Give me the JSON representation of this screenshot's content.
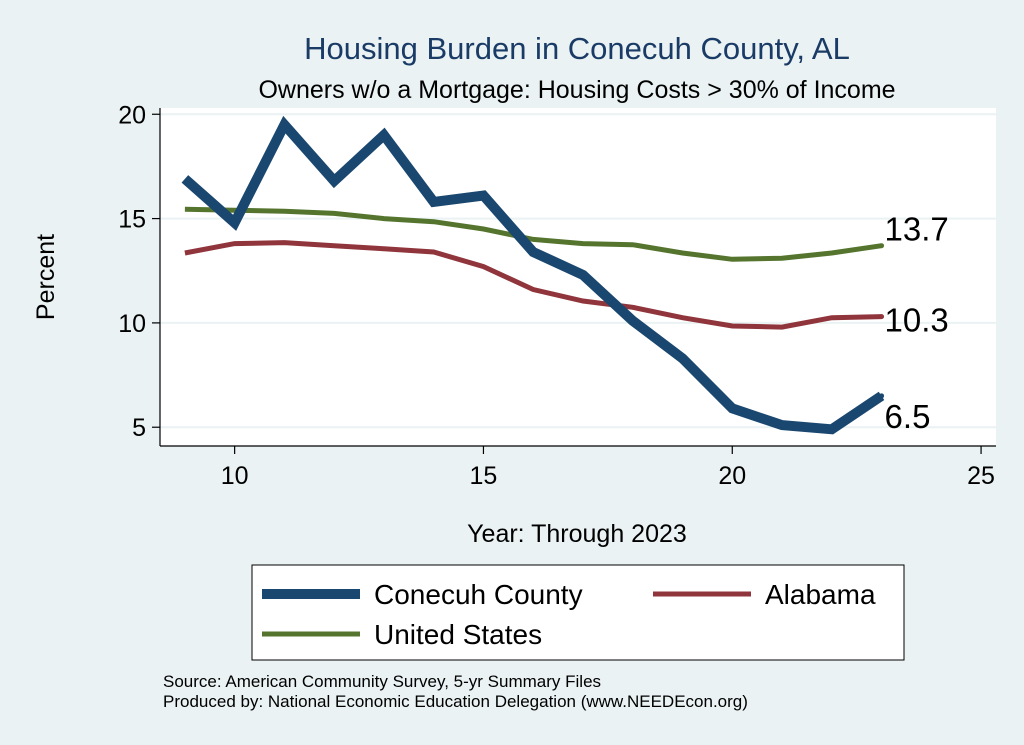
{
  "chart_data": {
    "type": "line",
    "title": "Housing Burden in Conecuh County, AL",
    "subtitle": "Owners w/o a Mortgage: Housing Costs > 30% of Income",
    "xlabel": "Year: Through 2023",
    "ylabel": "Percent",
    "xlim": [
      8.5,
      25.3
    ],
    "ylim": [
      4.1,
      20.3
    ],
    "xticks": [
      10,
      15,
      20,
      25
    ],
    "yticks": [
      5,
      10,
      15,
      20
    ],
    "grid": true,
    "legend_position": "bottom",
    "x": [
      9,
      10,
      11,
      12,
      13,
      14,
      15,
      16,
      17,
      18,
      19,
      20,
      21,
      22,
      23
    ],
    "series": [
      {
        "name": "Conecuh County",
        "color": "#1a476f",
        "values": [
          16.9,
          14.8,
          19.5,
          16.8,
          19.0,
          15.8,
          16.1,
          13.4,
          12.3,
          10.1,
          8.3,
          5.9,
          5.1,
          4.9,
          6.5
        ],
        "end_label": "6.5"
      },
      {
        "name": "Alabama",
        "color": "#90353b",
        "values": [
          13.35,
          13.8,
          13.85,
          13.7,
          13.55,
          13.4,
          12.7,
          11.6,
          11.05,
          10.75,
          10.25,
          9.85,
          9.8,
          10.25,
          10.3
        ],
        "end_label": "10.3"
      },
      {
        "name": "United States",
        "color": "#55752f",
        "values": [
          15.45,
          15.4,
          15.35,
          15.25,
          15.0,
          14.85,
          14.5,
          14.0,
          13.8,
          13.75,
          13.35,
          13.05,
          13.1,
          13.35,
          13.7
        ],
        "end_label": "13.7"
      }
    ]
  },
  "notes": {
    "source": "Source: American Community Survey, 5-yr Summary Files",
    "produced_by": "Produced by: National Economic Education Delegation (www.NEEDEcon.org)"
  }
}
